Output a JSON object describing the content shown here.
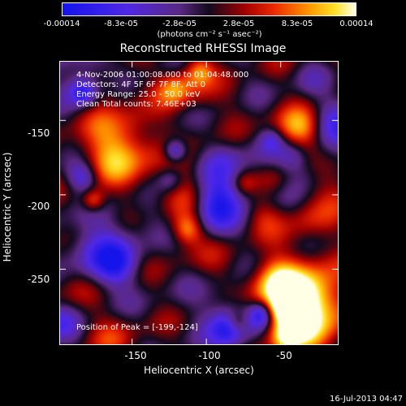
{
  "colorbar": {
    "ticks": [
      "-0.00014",
      "-8.3e-05",
      "-2.8e-05",
      "2.8e-05",
      "8.3e-05",
      "0.00014"
    ],
    "tick_values": [
      -0.00014,
      -8.3e-05,
      -2.8e-05,
      2.8e-05,
      8.3e-05,
      0.00014
    ],
    "units": "(photons cm⁻² s⁻¹ asec⁻²)",
    "colors": [
      "#0000ff",
      "#7a1fff",
      "#cc0000",
      "#ff3300",
      "#ffcc00",
      "#ffffff"
    ]
  },
  "title": "Reconstructed RHESSI Image",
  "annotations": {
    "time": "4-Nov-2006 01:00:08.000 to 01:04:48.000",
    "detectors": "Detectors: 4F 5F 6F 7F 8F, Att 0",
    "energy": "Energy Range: 25.0 - 50.0 keV",
    "clean": "Clean     Total counts: 7.46E+03",
    "peak": "Position of Peak = [-199,-124]"
  },
  "axes": {
    "xlabel": "Heliocentric X (arcsec)",
    "ylabel": "Heliocentric Y (arcsec)",
    "xticks": [
      "-150",
      "-100",
      "-50"
    ],
    "yticks": [
      "-150",
      "-200",
      "-250"
    ]
  },
  "footer": "16-Jul-2013 04:47",
  "chart_data": {
    "type": "heatmap",
    "title": "Reconstructed RHESSI Image",
    "xlabel": "Heliocentric X (arcsec)",
    "ylabel": "Heliocentric Y (arcsec)",
    "xlim": [
      -199,
      -11
    ],
    "ylim": [
      -301,
      -110
    ],
    "xticks": [
      -150,
      -100,
      -50
    ],
    "yticks": [
      -150,
      -200,
      -250
    ],
    "value_range": [
      -0.00014,
      0.00014
    ],
    "peak_position": [
      -199,
      -124
    ],
    "colormap": "rhessi_blue_red_yellow_white"
  }
}
